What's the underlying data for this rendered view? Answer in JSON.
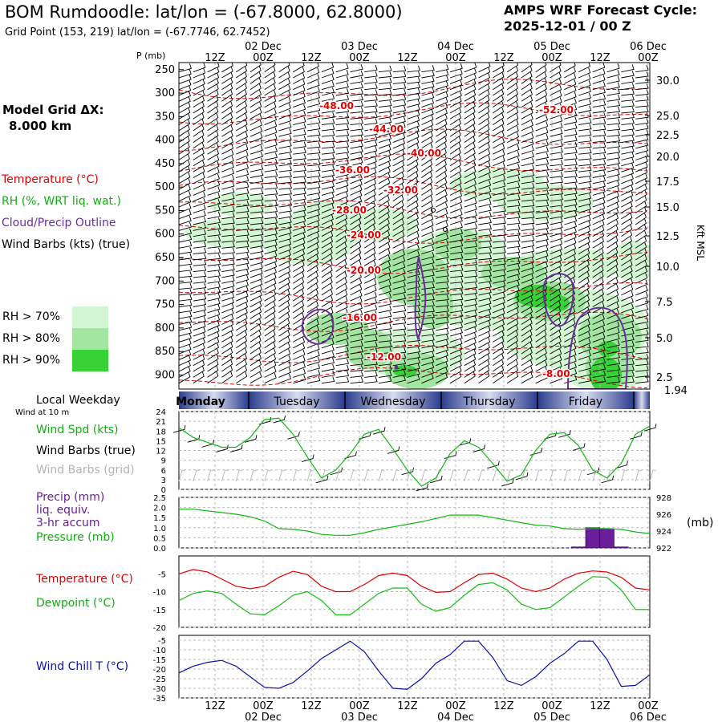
{
  "header": {
    "title": "BOM Rumdoodle:  lat/lon = (-67.8000, 62.8000)",
    "grid_point": "Grid Point (153, 219) lat/lon = (-67.7746, 62.7452)",
    "cycle_line1": "AMPS WRF Forecast Cycle:",
    "cycle_line2": "2025-12-01 / 00  Z"
  },
  "left_panel": {
    "model_grid_label": "Model Grid ΔX:",
    "model_grid_value": "8.000 km",
    "legend_temperature": "Temperature (°C)",
    "legend_rh": "RH (%, WRT liq. wat.)",
    "legend_cloud": "Cloud/Precip Outline",
    "legend_wind": "Wind Barbs (kts) (true)",
    "rh70": "RH > 70%",
    "rh80": "RH > 80%",
    "rh90": "RH > 90%",
    "local_weekday": "Local Weekday",
    "wind_at_10m": "Wind at 10 m",
    "wind_spd": "Wind Spd (kts)",
    "wind_barbs_true": "Wind Barbs (true)",
    "wind_barbs_grid": "Wind Barbs (grid)",
    "precip1": "Precip (mm)",
    "precip2": "liq. equiv.",
    "precip3": "3-hr accum",
    "pressure": "Pressure (mb)",
    "temp_label": "Temperature (°C)",
    "dew_label": "Dewpoint (°C)",
    "windchill_label": "Wind Chill T (°C)",
    "mb_unit": "(mb)",
    "kft_label": "Kft MSL"
  },
  "colors": {
    "temperature": "#e00000",
    "dewpoint": "#10c010",
    "wind_speed": "#10b810",
    "pressure": "#10b810",
    "precip": "#6a1f9a",
    "windchill": "#0a10a8",
    "cloud_outline": "#6a2d9a",
    "rh70": "#d2f7d2",
    "rh80": "#a2e6a2",
    "rh90": "#36d236",
    "barb_grid": "#b4b4b4",
    "weekday_bar": "#2a3c8c"
  },
  "chart_data": [
    {
      "type": "time-height cross section",
      "name": "upper-air",
      "ylabel": "P (mb)",
      "pressure_levels": [
        "250",
        "300",
        "350",
        "400",
        "450",
        "500",
        "550",
        "600",
        "650",
        "700",
        "750",
        "800",
        "850",
        "900"
      ],
      "ylim_mb": [
        930,
        235
      ],
      "kft_ticks": [
        "30.0",
        "25.0",
        "22.5",
        "20.0",
        "17.5",
        "15.0",
        "12.5",
        "10.0",
        "7.5",
        "5.0",
        "2.5"
      ],
      "surface_kft": "1.94",
      "temperature_labels": [
        "-48.00",
        "-52.00",
        "-44.00",
        "-40.00",
        "-36.00",
        "-32.00",
        "-28.00",
        "-24.00",
        "-20.00",
        "-16.00",
        "-12.00",
        "-8.00"
      ]
    },
    {
      "type": "line",
      "name": "wind-speed",
      "ylabel": "Wind Spd (kts)",
      "yticks": [
        "24",
        "21",
        "18",
        "15",
        "12",
        "9",
        "6",
        "3",
        "0"
      ],
      "ylim": [
        0,
        24
      ],
      "values": [
        19,
        16,
        14.5,
        13,
        13,
        16,
        21.5,
        22,
        17,
        10,
        3.5,
        6,
        11,
        17,
        18.5,
        12.5,
        6,
        1,
        3.5,
        11,
        15,
        13,
        8,
        2.5,
        4.5,
        12,
        17,
        17.5,
        13.5,
        6,
        3.5,
        8,
        17,
        19.5
      ]
    },
    {
      "type": "bar+line",
      "name": "precip-pressure",
      "ylabel": "Precip (mm)",
      "yticks": [
        "2.5",
        "2.0",
        "1.5",
        "1.0",
        "0.5",
        "0.0"
      ],
      "ylim": [
        0,
        2.5
      ],
      "right_ticks": [
        "928",
        "926",
        "924",
        "922"
      ],
      "right_ylim": [
        922,
        928
      ],
      "precip": [
        0,
        0,
        0,
        0,
        0,
        0,
        0,
        0,
        0,
        0,
        0,
        0,
        0,
        0,
        0,
        0,
        0,
        0,
        0,
        0,
        0,
        0,
        0,
        0,
        0,
        0,
        0,
        0,
        0.05,
        1.0,
        0.95,
        0.05,
        0,
        0
      ],
      "pressure": [
        926.6,
        926.6,
        926.4,
        926.2,
        926.0,
        925.7,
        925.2,
        924.3,
        924.2,
        924.0,
        923.6,
        923.5,
        923.5,
        923.8,
        924.2,
        924.5,
        924.8,
        925.1,
        925.5,
        925.9,
        925.9,
        925.9,
        925.6,
        925.3,
        925.0,
        924.7,
        924.6,
        924.3,
        924.2,
        924.3,
        924.3,
        924.2,
        923.9,
        923.7
      ]
    },
    {
      "type": "line",
      "name": "temperature-dewpoint",
      "yticks": [
        "-5",
        "-10",
        "-15",
        "-20"
      ],
      "ylim": [
        -20,
        0
      ],
      "series": [
        {
          "name": "Temperature",
          "values": [
            -5,
            -3.8,
            -4.5,
            -6.5,
            -8.5,
            -9.2,
            -8.5,
            -6,
            -4.3,
            -5.2,
            -8.5,
            -10,
            -10,
            -8,
            -5.5,
            -4.8,
            -5.5,
            -8.5,
            -10.2,
            -10,
            -7.5,
            -5.2,
            -4.8,
            -6.5,
            -9,
            -10,
            -9,
            -6.5,
            -4.8,
            -4.2,
            -4.5,
            -6,
            -9,
            -9.5
          ]
        },
        {
          "name": "Dewpoint",
          "values": [
            -12.5,
            -10.5,
            -9.8,
            -10.5,
            -13.5,
            -16.2,
            -16.5,
            -14,
            -11,
            -10,
            -12.5,
            -16.5,
            -16.5,
            -13.5,
            -10.5,
            -9,
            -9,
            -13.5,
            -15.5,
            -14.5,
            -11,
            -8,
            -7.5,
            -9.5,
            -13.5,
            -15,
            -14.5,
            -11.5,
            -8.5,
            -5.8,
            -6,
            -9.5,
            -15,
            -15
          ]
        }
      ]
    },
    {
      "type": "line",
      "name": "wind-chill",
      "ylabel": "Wind Chill T (°C)",
      "yticks": [
        "-5",
        "-10",
        "-15",
        "-20",
        "-25",
        "-30",
        "-35"
      ],
      "ylim": [
        -35,
        -2.5
      ],
      "values": [
        -22,
        -18.5,
        -16.5,
        -15.5,
        -18.5,
        -24,
        -29.5,
        -30,
        -27,
        -21,
        -14.5,
        -10,
        -5.5,
        -11,
        -21,
        -30,
        -30.5,
        -25,
        -17,
        -12.5,
        -5.5,
        -5.5,
        -14,
        -26,
        -28.5,
        -24,
        -17,
        -12,
        -5.5,
        -5.5,
        -15,
        -29,
        -28.5,
        -23
      ]
    }
  ],
  "time_axis": {
    "ticks": [
      "12Z",
      "00Z",
      "12Z",
      "00Z",
      "12Z",
      "00Z",
      "12Z",
      "00Z",
      "12Z",
      "00Z"
    ],
    "dates": [
      "02 Dec",
      "03 Dec",
      "04 Dec",
      "05 Dec",
      "06 Dec"
    ]
  },
  "weekdays": [
    "Monday",
    "Tuesday",
    "Wednesday",
    "Thursday",
    "Friday"
  ]
}
